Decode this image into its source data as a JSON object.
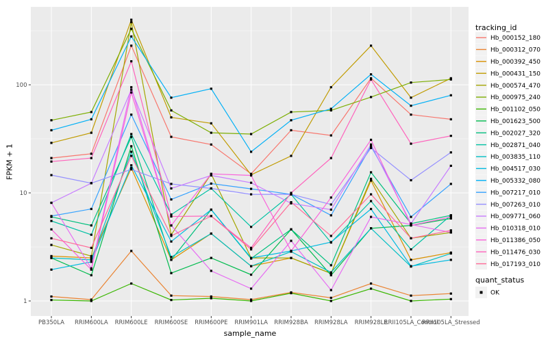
{
  "figure": {
    "bg": "#FFFFFF",
    "panel_bg": "#EBEBEB",
    "grid_color": "#FFFFFF",
    "tick_color": "#333333",
    "tick_label_color": "#4D4D4D",
    "point_color": "#000000"
  },
  "legend": {
    "tracking_title": "tracking_id",
    "quant_title": "quant_status",
    "quant_items": [
      {
        "label": "OK",
        "marker": "black-square"
      }
    ],
    "key_bg": "#F2F2F2"
  },
  "chart_data": {
    "type": "line",
    "title": "",
    "xlabel": "sample_name",
    "ylabel": "FPKM + 1",
    "y_scale": "log10",
    "y_ticks": [
      1,
      10,
      100
    ],
    "y_minor_ticks": [
      3.162,
      31.62,
      316.2
    ],
    "ylim": [
      0.73,
      525
    ],
    "grid": true,
    "legend_position": "right",
    "point_shape": "filled-square-black",
    "categories": [
      "PB350LA",
      "RRIM600LA",
      "RRIM600LE",
      "RRIM600SE",
      "RRIM600PE",
      "RRIM901LA",
      "RRIM928BA",
      "RRIM928LA",
      "RRIM928LE",
      "RRII105LA_Control",
      "RRII105LA_Stressed"
    ],
    "series": [
      {
        "name": "Hb_000152_180",
        "color": "#F8766D",
        "values": [
          21,
          23,
          230,
          33,
          28,
          15,
          38,
          34,
          115,
          53,
          48
        ]
      },
      {
        "name": "Hb_000312_070",
        "color": "#EA8331",
        "values": [
          1.1,
          1.03,
          2.9,
          1.12,
          1.1,
          1.03,
          1.2,
          1.07,
          1.45,
          1.12,
          1.17
        ]
      },
      {
        "name": "Hb_000392_450",
        "color": "#D89000",
        "values": [
          2.6,
          2.5,
          17,
          2.4,
          4.2,
          2.1,
          2.5,
          1.8,
          13,
          2.4,
          2.8
        ]
      },
      {
        "name": "Hb_000431_150",
        "color": "#C09B00",
        "values": [
          29,
          36,
          400,
          50,
          44,
          14.7,
          22,
          95,
          230,
          76,
          115
        ]
      },
      {
        "name": "Hb_000574_470",
        "color": "#A3A500",
        "values": [
          3.3,
          2.6,
          380,
          4.1,
          15,
          2.5,
          2.5,
          1.8,
          13.5,
          3.8,
          4.3
        ]
      },
      {
        "name": "Hb_000975_240",
        "color": "#7CAE00",
        "values": [
          47,
          56,
          330,
          58,
          36,
          35,
          56,
          58,
          77,
          105,
          112
        ]
      },
      {
        "name": "Hb_001102_050",
        "color": "#39B600",
        "values": [
          1.02,
          1.0,
          1.45,
          1.02,
          1.06,
          1.0,
          1.18,
          1.0,
          1.3,
          1.0,
          1.04
        ]
      },
      {
        "name": "Hb_001623_500",
        "color": "#00BB4E",
        "values": [
          2.5,
          1.73,
          27,
          1.81,
          2.5,
          1.75,
          4.6,
          1.73,
          4.7,
          5.0,
          5.8
        ]
      },
      {
        "name": "Hb_002027_320",
        "color": "#00BF7D",
        "values": [
          6.0,
          5.0,
          33,
          2.4,
          7.0,
          2.47,
          4.6,
          2.14,
          15.5,
          5.2,
          6.2
        ]
      },
      {
        "name": "Hb_002871_040",
        "color": "#00C1A3",
        "values": [
          5.5,
          4.1,
          35,
          6.3,
          11,
          4.85,
          9.7,
          3.47,
          8.4,
          3.0,
          6.2
        ]
      },
      {
        "name": "Hb_003835_110",
        "color": "#00BFC4",
        "values": [
          2.5,
          2.4,
          24,
          2.55,
          4.2,
          2.1,
          2.86,
          1.84,
          4.7,
          2.08,
          2.75
        ]
      },
      {
        "name": "Hb_004517_030",
        "color": "#00BAE0",
        "values": [
          1.95,
          2.3,
          18,
          3.55,
          7.0,
          2.5,
          2.9,
          3.5,
          7.1,
          2.1,
          2.4
        ]
      },
      {
        "name": "Hb_005332_080",
        "color": "#00B0F6",
        "values": [
          38,
          48,
          280,
          76,
          92,
          24,
          47,
          60,
          125,
          64,
          80
        ]
      },
      {
        "name": "Hb_007217_010",
        "color": "#35A2FF",
        "values": [
          6.1,
          7.1,
          53,
          8.7,
          12.2,
          10.9,
          9.7,
          6.2,
          27,
          6.0,
          12.1
        ]
      },
      {
        "name": "Hb_007263_010",
        "color": "#9590FF",
        "values": [
          14.6,
          12.3,
          16.5,
          12.1,
          11,
          9.7,
          9.7,
          7.8,
          26,
          13.1,
          23.7
        ]
      },
      {
        "name": "Hb_009771_060",
        "color": "#C77CFF",
        "values": [
          8.1,
          12.3,
          90,
          11,
          14.5,
          12.4,
          8.0,
          7.0,
          28,
          5.2,
          17.8
        ]
      },
      {
        "name": "Hb_010318_010",
        "color": "#E76BF3",
        "values": [
          8.1,
          2.0,
          95,
          5.0,
          1.9,
          1.3,
          3.6,
          1.26,
          6.0,
          5.1,
          4.3
        ]
      },
      {
        "name": "Hb_011386_050",
        "color": "#FA62DB",
        "values": [
          4.6,
          1.95,
          85,
          5.0,
          15,
          14.5,
          2.9,
          9.05,
          31,
          5.0,
          6.0
        ]
      },
      {
        "name": "Hb_011476_030",
        "color": "#FF62BC",
        "values": [
          19.5,
          21,
          165,
          6.05,
          6.1,
          3.1,
          10,
          21,
          112,
          28.5,
          33.7
        ]
      },
      {
        "name": "Hb_017193_010",
        "color": "#FF6A98",
        "values": [
          3.8,
          3.1,
          22,
          4.0,
          6.1,
          3.0,
          8.2,
          4.0,
          9.7,
          3.8,
          4.5
        ]
      }
    ]
  }
}
